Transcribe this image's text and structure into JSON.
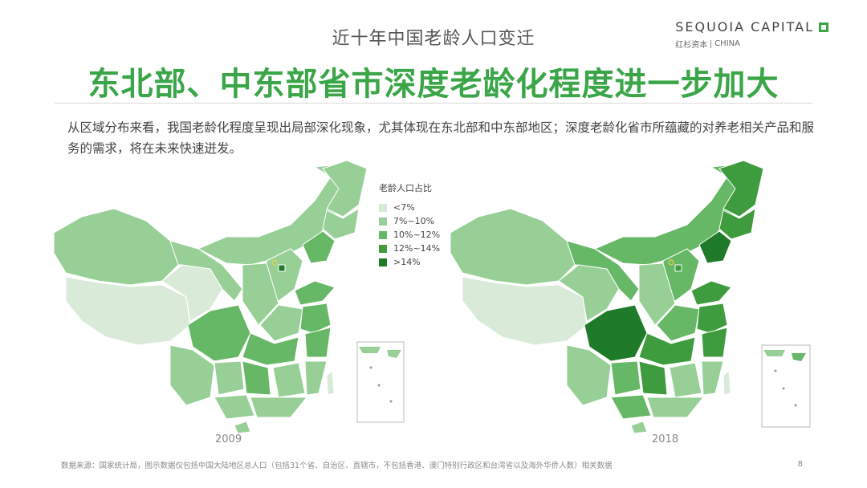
{
  "header": {
    "topic": "近十年中国老龄人口变迁",
    "headline": "东北部、中东部省市深度老龄化程度进一步加大",
    "description": "从区域分布来看，我国老龄化程度呈现出局部深化现象，尤其体现在东北部和中东部地区；深度老龄化省市所蕴藏的对养老相关产品和服务的需求，将在未来快速迸发。"
  },
  "brand": {
    "name": "SEQUOIA CAPITAL",
    "sub_cn": "红杉资本",
    "sub_en": "CHINA",
    "color": "#3aa648"
  },
  "legend": {
    "title": "老龄人口占比",
    "items": [
      {
        "label": "<7%",
        "color": "#d9ead9"
      },
      {
        "label": "7%~10%",
        "color": "#97cf97"
      },
      {
        "label": "10%~12%",
        "color": "#66b766"
      },
      {
        "label": "12%~14%",
        "color": "#3e9c3e"
      },
      {
        "label": ">14%",
        "color": "#1f7a2a"
      }
    ]
  },
  "maps": [
    {
      "year": "2009"
    },
    {
      "year": "2018"
    }
  ],
  "footer": {
    "source": "数据来源：国家统计局，图示数据仅包括中国大陆地区总人口（包括31个省、自治区、直辖市，不包括香港、澳门特别行政区和台湾省以及海外华侨人数）相关数据",
    "page": "8"
  }
}
